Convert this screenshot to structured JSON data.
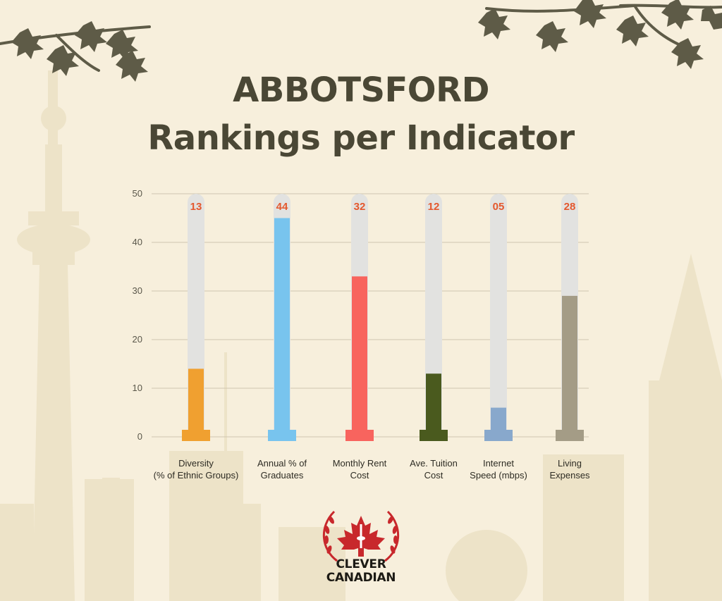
{
  "title_line1": "ABBOTSFORD",
  "title_line2": "Rankings per Indicator",
  "chart_data": {
    "type": "bar",
    "categories": [
      [
        "Diversity",
        "(% of Ethnic Groups)"
      ],
      [
        "Annual % of",
        "Graduates"
      ],
      [
        "Monthly Rent",
        "Cost"
      ],
      [
        "Ave. Tuition",
        "Cost"
      ],
      [
        "Internet",
        "Speed (mbps)"
      ],
      [
        "Living",
        "Expenses"
      ]
    ],
    "values": [
      13,
      44,
      32,
      12,
      5,
      28
    ],
    "data_labels": [
      "13",
      "44",
      "32",
      "12",
      "05",
      "28"
    ],
    "colors": [
      "#f0a030",
      "#78c4ee",
      "#f8645e",
      "#4a5a1e",
      "#88a8cc",
      "#a49c86"
    ],
    "label_color": "#e4582e",
    "track_color": "#e2e2e0",
    "yticks": [
      0,
      10,
      20,
      30,
      40,
      50
    ],
    "ylim": [
      0,
      50
    ],
    "grid": true,
    "legend": "none"
  },
  "logo": {
    "line1": "CLEVER",
    "line2": "CANADIAN",
    "color": "#c8282c"
  }
}
